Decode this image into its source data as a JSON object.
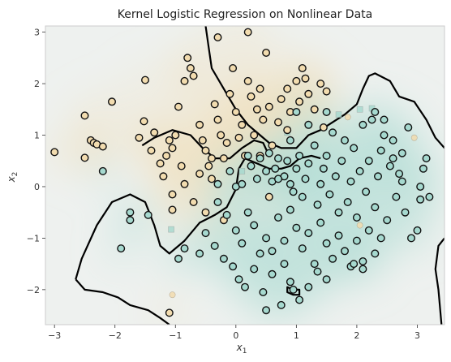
{
  "chart_data": {
    "type": "scatter",
    "title": "Kernel Logistic Regression on Nonlinear Data",
    "xlabel": "x",
    "xlabel_sub": "1",
    "ylabel": "x",
    "ylabel_sub": "2",
    "xlim": [
      -3.15,
      3.45
    ],
    "ylim": [
      -2.68,
      3.12
    ],
    "xticks": [
      -3,
      -2,
      -1,
      0,
      1,
      2,
      3
    ],
    "yticks": [
      -2,
      -1,
      0,
      1,
      2,
      3
    ],
    "grid": false,
    "legend": "none",
    "colors": {
      "class_a": "#f2dcaf",
      "class_b": "#a6d9cf",
      "edge": "#111111",
      "background": "#eef1ef",
      "boundary": "#000000"
    },
    "series": [
      {
        "points": [
          [
            -3.0,
            0.67
          ],
          [
            -2.5,
            1.38
          ],
          [
            -2.5,
            0.56
          ],
          [
            -2.4,
            0.9
          ],
          [
            -2.35,
            0.85
          ],
          [
            -2.3,
            0.82
          ],
          [
            -2.2,
            0.78
          ],
          [
            -2.05,
            1.65
          ],
          [
            -1.5,
            2.07
          ],
          [
            -1.52,
            1.27
          ],
          [
            -1.6,
            0.95
          ],
          [
            -1.4,
            0.7
          ],
          [
            -1.35,
            1.05
          ],
          [
            -1.25,
            0.45
          ],
          [
            -1.2,
            0.2
          ],
          [
            -1.15,
            0.6
          ],
          [
            -1.1,
            0.9
          ],
          [
            -1.05,
            0.75
          ],
          [
            -1.0,
            1.0
          ],
          [
            -0.95,
            1.55
          ],
          [
            -0.9,
            0.4
          ],
          [
            -0.85,
            2.05
          ],
          [
            -0.8,
            2.5
          ],
          [
            -0.75,
            2.3
          ],
          [
            -0.7,
            2.15
          ],
          [
            -0.6,
            1.2
          ],
          [
            -0.55,
            0.9
          ],
          [
            -0.5,
            0.7
          ],
          [
            -0.45,
            0.4
          ],
          [
            -0.4,
            0.15
          ],
          [
            -0.35,
            1.6
          ],
          [
            -0.3,
            1.3
          ],
          [
            -0.25,
            1.0
          ],
          [
            -0.2,
            0.55
          ],
          [
            -0.15,
            0.85
          ],
          [
            -0.1,
            1.8
          ],
          [
            -0.05,
            2.3
          ],
          [
            0.0,
            1.45
          ],
          [
            0.05,
            0.95
          ],
          [
            0.1,
            1.2
          ],
          [
            0.15,
            0.6
          ],
          [
            0.2,
            2.05
          ],
          [
            0.25,
            1.75
          ],
          [
            0.3,
            1.0
          ],
          [
            0.35,
            1.5
          ],
          [
            0.4,
            1.9
          ],
          [
            0.45,
            1.3
          ],
          [
            0.5,
            2.6
          ],
          [
            0.55,
            1.55
          ],
          [
            0.6,
            0.8
          ],
          [
            0.7,
            1.25
          ],
          [
            0.75,
            1.7
          ],
          [
            0.85,
            1.9
          ],
          [
            0.9,
            1.45
          ],
          [
            1.0,
            2.05
          ],
          [
            1.05,
            1.65
          ],
          [
            1.1,
            2.3
          ],
          [
            1.15,
            2.1
          ],
          [
            1.2,
            1.8
          ],
          [
            1.3,
            1.5
          ],
          [
            1.4,
            2.0
          ],
          [
            1.45,
            1.15
          ],
          [
            1.5,
            1.85
          ],
          [
            -0.3,
            2.9
          ],
          [
            0.2,
            3.0
          ],
          [
            -0.4,
            0.55
          ],
          [
            -0.6,
            0.25
          ],
          [
            -0.85,
            0.05
          ],
          [
            -1.05,
            -0.15
          ],
          [
            -0.7,
            -0.3
          ],
          [
            0.4,
            0.6
          ],
          [
            0.85,
            1.1
          ],
          [
            -1.05,
            -0.45
          ],
          [
            -0.5,
            -0.5
          ],
          [
            -0.2,
            -0.65
          ],
          [
            0.55,
            -0.2
          ],
          [
            -1.1,
            -2.45
          ]
        ],
        "marker": "circle",
        "class": "a"
      },
      {
        "points": [
          [
            -1.75,
            -0.5
          ],
          [
            -1.75,
            -0.65
          ],
          [
            -1.45,
            -0.55
          ],
          [
            -1.9,
            -1.2
          ],
          [
            -2.2,
            0.3
          ],
          [
            -0.1,
            0.3
          ],
          [
            0.0,
            0.0
          ],
          [
            0.1,
            0.05
          ],
          [
            0.2,
            0.6
          ],
          [
            0.25,
            0.4
          ],
          [
            0.35,
            0.15
          ],
          [
            0.4,
            0.55
          ],
          [
            0.5,
            0.3
          ],
          [
            0.55,
            0.65
          ],
          [
            0.6,
            0.1
          ],
          [
            0.65,
            0.35
          ],
          [
            0.7,
            0.55
          ],
          [
            0.8,
            0.2
          ],
          [
            0.85,
            0.5
          ],
          [
            0.9,
            0.05
          ],
          [
            0.95,
            -0.1
          ],
          [
            1.0,
            0.35
          ],
          [
            1.05,
            0.6
          ],
          [
            1.1,
            -0.2
          ],
          [
            1.15,
            0.15
          ],
          [
            1.2,
            0.45
          ],
          [
            1.3,
            0.8
          ],
          [
            1.35,
            -0.35
          ],
          [
            1.4,
            0.05
          ],
          [
            1.45,
            0.35
          ],
          [
            1.5,
            0.6
          ],
          [
            1.55,
            -0.15
          ],
          [
            1.6,
            1.05
          ],
          [
            1.65,
            0.2
          ],
          [
            1.7,
            -0.5
          ],
          [
            1.75,
            0.5
          ],
          [
            1.8,
            0.9
          ],
          [
            1.85,
            -0.3
          ],
          [
            1.9,
            0.1
          ],
          [
            1.95,
            0.75
          ],
          [
            2.0,
            -0.6
          ],
          [
            2.05,
            0.3
          ],
          [
            2.1,
            1.2
          ],
          [
            2.15,
            -0.1
          ],
          [
            2.2,
            0.5
          ],
          [
            2.25,
            1.3
          ],
          [
            2.3,
            -0.4
          ],
          [
            2.35,
            0.2
          ],
          [
            2.4,
            0.7
          ],
          [
            2.45,
            1.0
          ],
          [
            2.5,
            -0.65
          ],
          [
            2.55,
            0.4
          ],
          [
            2.6,
            0.9
          ],
          [
            2.65,
            -0.2
          ],
          [
            2.7,
            0.25
          ],
          [
            2.75,
            0.65
          ],
          [
            2.8,
            -0.5
          ],
          [
            2.85,
            1.15
          ],
          [
            3.0,
            -0.85
          ],
          [
            3.05,
            -0.25
          ],
          [
            3.1,
            0.35
          ],
          [
            3.15,
            0.55
          ],
          [
            -0.3,
            -0.3
          ],
          [
            -0.15,
            -0.55
          ],
          [
            0.0,
            -0.85
          ],
          [
            0.1,
            -1.1
          ],
          [
            0.2,
            -0.5
          ],
          [
            0.3,
            -0.75
          ],
          [
            0.4,
            -1.3
          ],
          [
            0.5,
            -1.0
          ],
          [
            0.6,
            -1.25
          ],
          [
            0.7,
            -0.6
          ],
          [
            0.8,
            -1.05
          ],
          [
            0.9,
            -0.45
          ],
          [
            1.0,
            -0.8
          ],
          [
            1.1,
            -1.2
          ],
          [
            1.2,
            -0.9
          ],
          [
            1.3,
            -1.5
          ],
          [
            1.4,
            -0.7
          ],
          [
            1.5,
            -1.1
          ],
          [
            1.6,
            -1.4
          ],
          [
            1.7,
            -0.95
          ],
          [
            1.8,
            -1.25
          ],
          [
            1.9,
            -1.55
          ],
          [
            2.0,
            -1.05
          ],
          [
            2.1,
            -1.45
          ],
          [
            2.2,
            -0.85
          ],
          [
            2.3,
            -1.3
          ],
          [
            2.4,
            -1.0
          ],
          [
            -0.5,
            -0.9
          ],
          [
            -0.35,
            -1.15
          ],
          [
            -0.2,
            -1.4
          ],
          [
            -0.05,
            -1.55
          ],
          [
            0.05,
            -1.8
          ],
          [
            0.15,
            -1.95
          ],
          [
            0.3,
            -1.6
          ],
          [
            0.45,
            -2.05
          ],
          [
            0.6,
            -1.7
          ],
          [
            0.75,
            -2.3
          ],
          [
            0.9,
            -1.85
          ],
          [
            1.05,
            -2.2
          ],
          [
            1.2,
            -1.95
          ],
          [
            1.35,
            -1.65
          ],
          [
            1.5,
            -1.8
          ],
          [
            0.5,
            -2.4
          ],
          [
            0.8,
            -1.5
          ],
          [
            0.95,
            -2.0
          ],
          [
            -0.95,
            -1.4
          ],
          [
            -0.85,
            -1.2
          ],
          [
            -0.6,
            -1.3
          ],
          [
            1.95,
            -1.5
          ],
          [
            2.1,
            -1.6
          ],
          [
            2.3,
            1.45
          ],
          [
            2.45,
            1.3
          ],
          [
            2.6,
            0.55
          ],
          [
            2.75,
            0.1
          ],
          [
            3.05,
            0.0
          ],
          [
            3.2,
            -0.2
          ],
          [
            2.9,
            -1.0
          ],
          [
            1.0,
            1.45
          ],
          [
            0.9,
            0.9
          ],
          [
            1.2,
            1.2
          ],
          [
            1.5,
            1.45
          ],
          [
            0.7,
            0.15
          ],
          [
            -0.3,
            0.05
          ]
        ],
        "marker": "circle",
        "class": "b"
      }
    ],
    "faint_markers": [
      {
        "x": 2.25,
        "y": 1.52,
        "marker": "square",
        "class": "b"
      },
      {
        "x": 2.05,
        "y": 1.5,
        "marker": "square",
        "class": "b"
      },
      {
        "x": -1.07,
        "y": -0.83,
        "marker": "square",
        "class": "b"
      },
      {
        "x": -1.05,
        "y": -2.1,
        "marker": "circle",
        "class": "a"
      },
      {
        "x": 1.85,
        "y": 1.35,
        "marker": "circle",
        "class": "a"
      },
      {
        "x": 2.05,
        "y": -0.75,
        "marker": "circle",
        "class": "a"
      },
      {
        "x": 2.95,
        "y": 0.95,
        "marker": "circle",
        "class": "a"
      },
      {
        "x": 0.85,
        "y": 1.05,
        "marker": "square",
        "class": "b"
      },
      {
        "x": 1.7,
        "y": 1.4,
        "marker": "square",
        "class": "b"
      },
      {
        "x": 0.1,
        "y": 0.3,
        "marker": "square",
        "class": "b"
      }
    ],
    "decision_boundary": [
      {
        "closed": false,
        "points": [
          [
            -0.5,
            3.12
          ],
          [
            -0.45,
            2.7
          ],
          [
            -0.4,
            2.3
          ],
          [
            -0.2,
            1.9
          ],
          [
            0.0,
            1.5
          ],
          [
            0.2,
            1.2
          ],
          [
            0.4,
            1.0
          ],
          [
            0.55,
            0.85
          ],
          [
            0.75,
            0.75
          ],
          [
            1.0,
            0.75
          ],
          [
            1.2,
            1.0
          ],
          [
            1.4,
            1.1
          ],
          [
            1.6,
            1.25
          ],
          [
            1.8,
            1.4
          ],
          [
            2.0,
            1.6
          ],
          [
            2.1,
            1.9
          ],
          [
            2.2,
            2.15
          ],
          [
            2.3,
            2.2
          ],
          [
            2.55,
            2.05
          ],
          [
            2.7,
            1.75
          ],
          [
            2.95,
            1.65
          ],
          [
            3.15,
            1.3
          ],
          [
            3.3,
            0.95
          ],
          [
            3.45,
            0.75
          ]
        ]
      },
      {
        "closed": false,
        "points": [
          [
            -2.65,
            -1.8
          ],
          [
            -2.55,
            -1.4
          ],
          [
            -2.3,
            -0.75
          ],
          [
            -2.05,
            -0.3
          ],
          [
            -1.75,
            -0.15
          ],
          [
            -1.5,
            -0.3
          ],
          [
            -1.35,
            -0.75
          ],
          [
            -1.25,
            -1.15
          ],
          [
            -1.1,
            -1.3
          ],
          [
            -0.85,
            -1.05
          ],
          [
            -0.6,
            -0.7
          ],
          [
            -0.35,
            -0.55
          ],
          [
            -0.15,
            -0.4
          ],
          [
            0.0,
            -0.05
          ],
          [
            0.05,
            0.35
          ],
          [
            0.15,
            0.55
          ],
          [
            0.35,
            0.45
          ],
          [
            0.55,
            0.35
          ],
          [
            0.75,
            0.35
          ],
          [
            0.9,
            0.4
          ],
          [
            1.05,
            0.55
          ],
          [
            1.25,
            0.6
          ],
          [
            1.4,
            0.55
          ]
        ]
      },
      {
        "closed": false,
        "points": [
          [
            -2.65,
            -1.8
          ],
          [
            -2.5,
            -2.0
          ],
          [
            -2.2,
            -2.05
          ],
          [
            -1.95,
            -2.15
          ],
          [
            -1.75,
            -2.3
          ],
          [
            -1.45,
            -2.4
          ],
          [
            -1.25,
            -2.55
          ],
          [
            -1.1,
            -2.68
          ]
        ]
      },
      {
        "closed": false,
        "points": [
          [
            -1.55,
            0.8
          ],
          [
            -1.35,
            0.95
          ],
          [
            -1.05,
            1.1
          ],
          [
            -0.75,
            1.0
          ],
          [
            -0.55,
            0.75
          ],
          [
            -0.35,
            0.55
          ],
          [
            -0.1,
            0.55
          ],
          [
            0.1,
            0.75
          ],
          [
            0.3,
            0.9
          ],
          [
            0.45,
            0.85
          ],
          [
            0.55,
            0.6
          ]
        ]
      },
      {
        "closed": false,
        "points": [
          [
            3.45,
            -1.0
          ],
          [
            3.35,
            -1.15
          ],
          [
            3.3,
            -1.6
          ],
          [
            3.35,
            -2.0
          ],
          [
            3.4,
            -2.68
          ]
        ]
      },
      {
        "closed": true,
        "points": [
          [
            0.85,
            -1.95
          ],
          [
            0.95,
            -2.0
          ],
          [
            1.05,
            -2.0
          ],
          [
            1.05,
            -2.1
          ],
          [
            0.95,
            -2.1
          ],
          [
            0.85,
            -2.05
          ]
        ]
      }
    ]
  }
}
